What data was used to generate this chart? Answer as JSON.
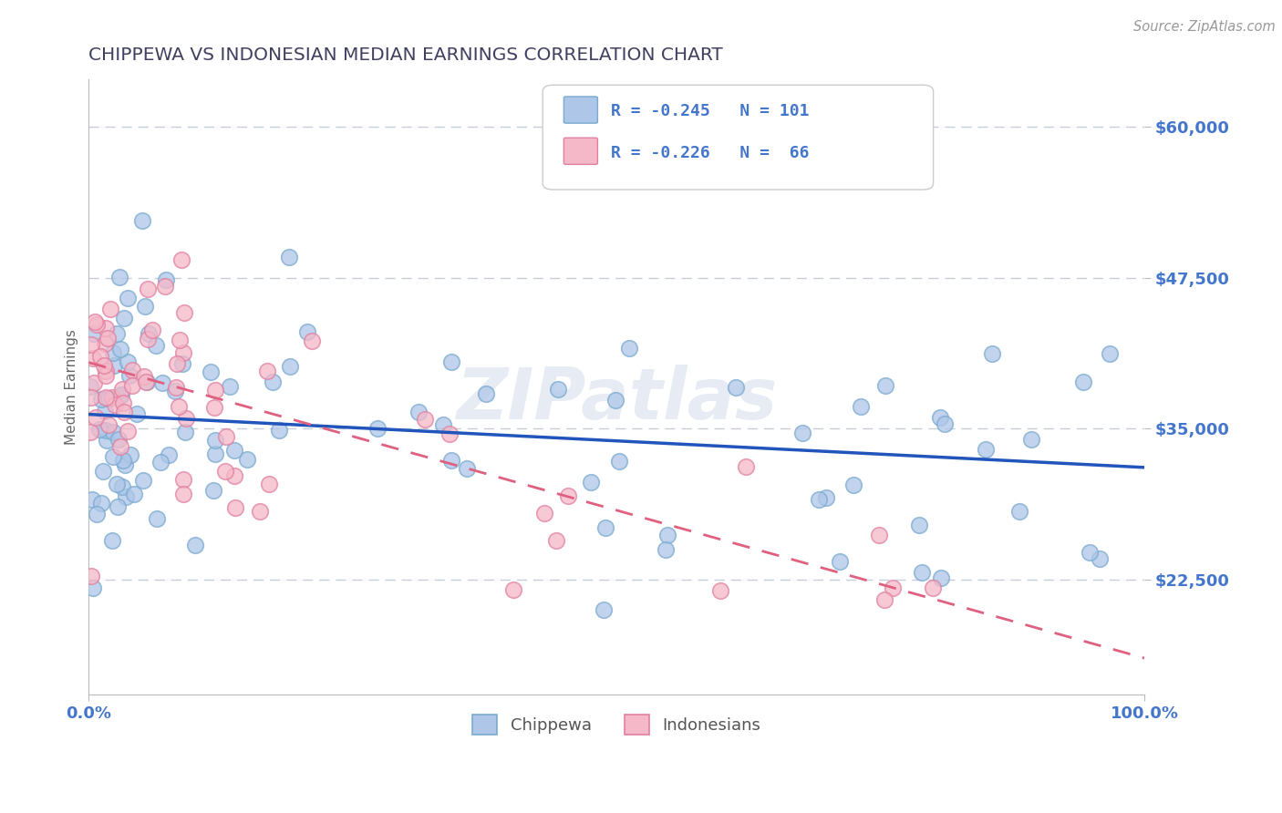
{
  "title": "CHIPPEWA VS INDONESIAN MEDIAN EARNINGS CORRELATION CHART",
  "source_text": "Source: ZipAtlas.com",
  "ylabel": "Median Earnings",
  "xlim": [
    0,
    100
  ],
  "ylim": [
    13000,
    64000
  ],
  "yticks": [
    22500,
    35000,
    47500,
    60000
  ],
  "ytick_labels": [
    "$22,500",
    "$35,000",
    "$47,500",
    "$60,000"
  ],
  "xticks": [
    0,
    100
  ],
  "xtick_labels": [
    "0.0%",
    "100.0%"
  ],
  "chippewa_color": "#aec6e8",
  "chippewa_edge_color": "#7aaad0",
  "indonesian_color": "#f5b8c8",
  "indonesian_edge_color": "#e080a0",
  "chippewa_line_color": "#2255bb",
  "indonesian_line_color": "#e06080",
  "legend_label1": "Chippewa",
  "legend_label2": "Indonesians",
  "watermark": "ZIPatlas",
  "chippewa_R": -0.245,
  "chippewa_N": 101,
  "indonesian_R": -0.226,
  "indonesian_N": 66,
  "title_color": "#404060",
  "axis_tick_color": "#4477cc",
  "grid_color": "#c8ccd8",
  "background_color": "#ffffff",
  "chip_trend_x0": 0,
  "chip_trend_y0": 36200,
  "chip_trend_x1": 100,
  "chip_trend_y1": 31800,
  "indo_trend_x0": 0,
  "indo_trend_y0": 40500,
  "indo_trend_x1": 100,
  "indo_trend_y1": 16000
}
